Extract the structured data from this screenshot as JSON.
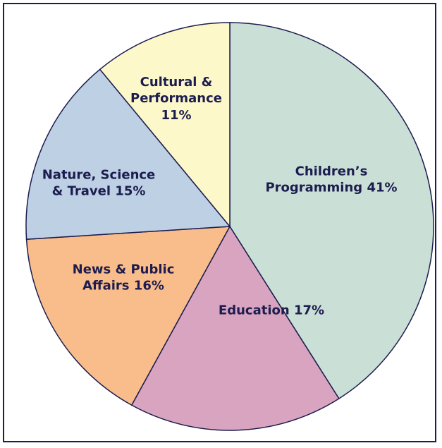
{
  "chart_data": {
    "type": "pie",
    "categories": [
      "Children’s Programming",
      "Education",
      "News & Public Affairs",
      "Nature, Science & Travel",
      "Cultural & Performance"
    ],
    "values": [
      41,
      17,
      16,
      15,
      11
    ],
    "value_labels": [
      "41%",
      "17%",
      "16%",
      "15%",
      "11%"
    ],
    "colors": [
      "#cadfd6",
      "#d8a4c0",
      "#f9bd8b",
      "#bdd0e4",
      "#fdf8c9"
    ],
    "start_angle": 0,
    "direction": "clockwise"
  }
}
